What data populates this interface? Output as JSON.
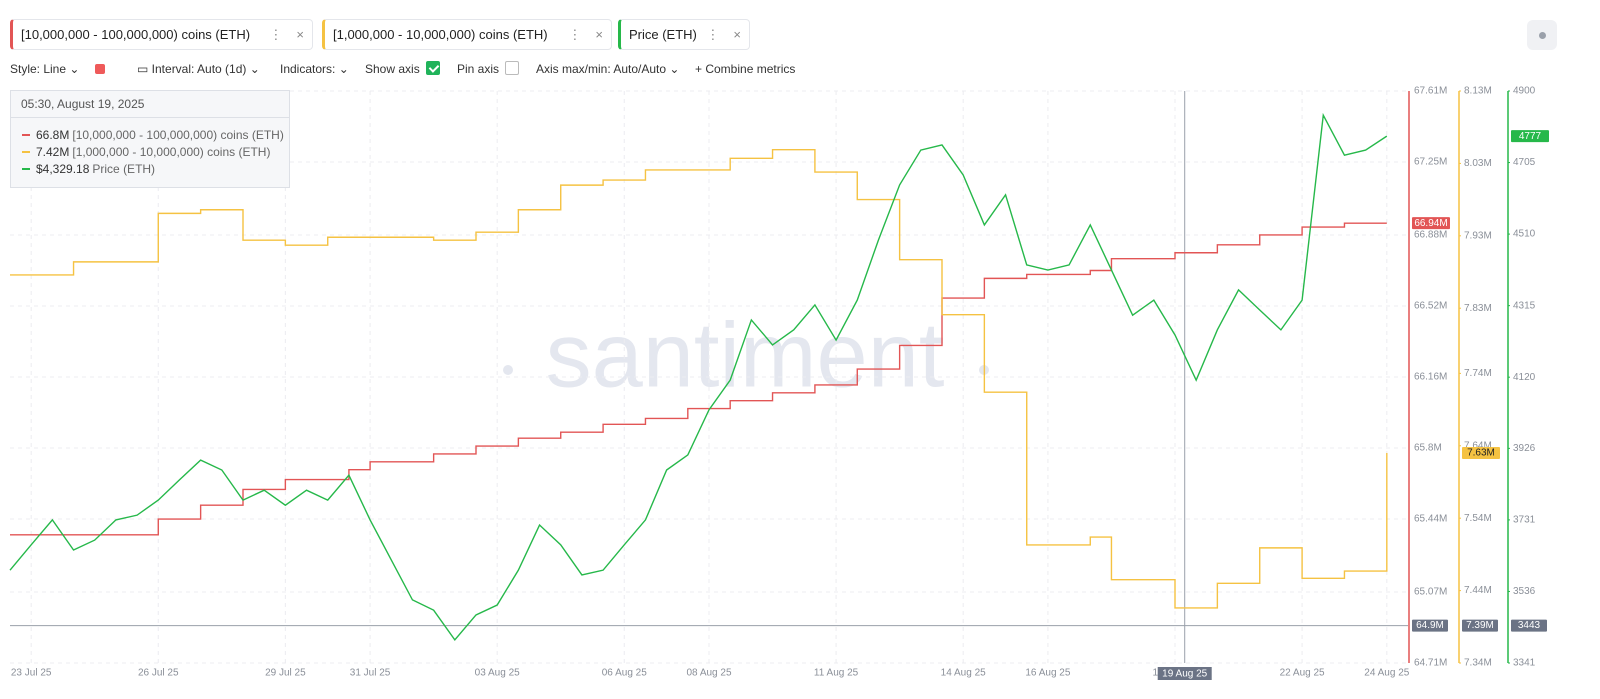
{
  "toolbar": {
    "style": "Style: Line",
    "interval": "Interval: Auto (1d)",
    "indicators": "Indicators:",
    "show_axis": "Show axis",
    "show_axis_checked": true,
    "pin_axis": "Pin axis",
    "pin_axis_checked": false,
    "axis_range": "Axis max/min: Auto/Auto",
    "combine": "+ Combine metrics"
  },
  "tooltip": {
    "time": "05:30, August 19, 2025",
    "values": [
      "66.8M",
      "7.42M",
      "$4,329.18"
    ]
  },
  "watermark": "santiment",
  "chart_data": {
    "type": "line",
    "grid": true,
    "x": [
      "2025-07-22T12:00",
      "2025-07-23T00:00",
      "2025-07-23T12:00",
      "2025-07-24T00:00",
      "2025-07-24T12:00",
      "2025-07-25T00:00",
      "2025-07-25T12:00",
      "2025-07-26T00:00",
      "2025-07-26T12:00",
      "2025-07-27T00:00",
      "2025-07-27T12:00",
      "2025-07-28T00:00",
      "2025-07-28T12:00",
      "2025-07-29T00:00",
      "2025-07-29T12:00",
      "2025-07-30T00:00",
      "2025-07-30T12:00",
      "2025-07-31T00:00",
      "2025-07-31T12:00",
      "2025-08-01T00:00",
      "2025-08-01T12:00",
      "2025-08-02T00:00",
      "2025-08-02T12:00",
      "2025-08-03T00:00",
      "2025-08-03T12:00",
      "2025-08-04T00:00",
      "2025-08-04T12:00",
      "2025-08-05T00:00",
      "2025-08-05T12:00",
      "2025-08-06T00:00",
      "2025-08-06T12:00",
      "2025-08-07T00:00",
      "2025-08-07T12:00",
      "2025-08-08T00:00",
      "2025-08-08T12:00",
      "2025-08-09T00:00",
      "2025-08-09T12:00",
      "2025-08-10T00:00",
      "2025-08-10T12:00",
      "2025-08-11T00:00",
      "2025-08-11T12:00",
      "2025-08-12T00:00",
      "2025-08-12T12:00",
      "2025-08-13T00:00",
      "2025-08-13T12:00",
      "2025-08-14T00:00",
      "2025-08-14T12:00",
      "2025-08-15T00:00",
      "2025-08-15T12:00",
      "2025-08-16T00:00",
      "2025-08-16T12:00",
      "2025-08-17T00:00",
      "2025-08-17T12:00",
      "2025-08-18T00:00",
      "2025-08-18T12:00",
      "2025-08-19T00:00",
      "2025-08-19T12:00",
      "2025-08-20T00:00",
      "2025-08-20T12:00",
      "2025-08-21T00:00",
      "2025-08-21T12:00",
      "2025-08-22T00:00",
      "2025-08-22T12:00",
      "2025-08-23T00:00",
      "2025-08-23T12:00",
      "2025-08-24T00:00"
    ],
    "xlim": [
      "2025-07-22T12:00",
      "2025-08-24T12:00"
    ],
    "xticks": [
      {
        "value": "2025-07-23T00:00",
        "label": "23 Jul 25"
      },
      {
        "value": "2025-07-26T00:00",
        "label": "26 Jul 25"
      },
      {
        "value": "2025-07-29T00:00",
        "label": "29 Jul 25"
      },
      {
        "value": "2025-07-31T00:00",
        "label": "31 Jul 25"
      },
      {
        "value": "2025-08-03T00:00",
        "label": "03 Aug 25"
      },
      {
        "value": "2025-08-06T00:00",
        "label": "06 Aug 25"
      },
      {
        "value": "2025-08-08T00:00",
        "label": "08 Aug 25"
      },
      {
        "value": "2025-08-11T00:00",
        "label": "11 Aug 25"
      },
      {
        "value": "2025-08-14T00:00",
        "label": "14 Aug 25"
      },
      {
        "value": "2025-08-16T00:00",
        "label": "16 Aug 25"
      },
      {
        "value": "2025-08-19T00:00",
        "label": "19 Aug 25"
      },
      {
        "value": "2025-08-22T00:00",
        "label": "22 Aug 25"
      },
      {
        "value": "2025-08-24T00:00",
        "label": "24 Aug 25"
      }
    ],
    "ylim": [
      64710000,
      67610000
    ],
    "yticks": [
      {
        "value": 64710000,
        "label": "64.71M"
      },
      {
        "value": 65070000,
        "label": "65.07M"
      },
      {
        "value": 65440000,
        "label": "65.44M"
      },
      {
        "value": 65800000,
        "label": "65.8M"
      },
      {
        "value": 66160000,
        "label": "66.16M"
      },
      {
        "value": 66520000,
        "label": "66.52M"
      },
      {
        "value": 66880000,
        "label": "66.88M"
      },
      {
        "value": 67250000,
        "label": "67.25M"
      },
      {
        "value": 67610000,
        "label": "67.61M"
      }
    ],
    "y2lim": [
      7340000,
      8130000
    ],
    "y2ticks": [
      {
        "value": 7340000,
        "label": "7.34M"
      },
      {
        "value": 7440000,
        "label": "7.44M"
      },
      {
        "value": 7540000,
        "label": "7.54M"
      },
      {
        "value": 7640000,
        "label": "7.64M"
      },
      {
        "value": 7740000,
        "label": "7.74M"
      },
      {
        "value": 7830000,
        "label": "7.83M"
      },
      {
        "value": 7930000,
        "label": "7.93M"
      },
      {
        "value": 8030000,
        "label": "8.03M"
      },
      {
        "value": 8130000,
        "label": "8.13M"
      }
    ],
    "y3lim": [
      3341,
      4900
    ],
    "y3ticks": [
      3341,
      3536,
      3731,
      3926,
      4120,
      4315,
      4510,
      4705,
      4900
    ],
    "series": [
      {
        "name": "[10,000,000 - 100,000,000) coins (ETH)",
        "color": "#e25555",
        "axis": "y",
        "step": true,
        "last_label": "66.94M",
        "values": [
          65360000,
          65360000,
          65360000,
          65360000,
          65360000,
          65360000,
          65360000,
          65440000,
          65440000,
          65510000,
          65510000,
          65590000,
          65590000,
          65640000,
          65640000,
          65640000,
          65690000,
          65730000,
          65730000,
          65730000,
          65770000,
          65770000,
          65810000,
          65810000,
          65850000,
          65850000,
          65880000,
          65880000,
          65920000,
          65920000,
          65950000,
          65950000,
          66000000,
          66000000,
          66040000,
          66040000,
          66080000,
          66080000,
          66120000,
          66120000,
          66200000,
          66200000,
          66320000,
          66320000,
          66560000,
          66560000,
          66660000,
          66660000,
          66680000,
          66680000,
          66680000,
          66700000,
          66760000,
          66760000,
          66760000,
          66790000,
          66790000,
          66830000,
          66830000,
          66880000,
          66880000,
          66920000,
          66920000,
          66940000,
          66940000,
          66940000
        ]
      },
      {
        "name": "[1,000,000 - 10,000,000) coins (ETH)",
        "color": "#f5c242",
        "axis": "y2",
        "step": true,
        "last_label": "7.63M",
        "values": [
          7876000,
          7876000,
          7876000,
          7894000,
          7894000,
          7894000,
          7894000,
          7961000,
          7961000,
          7966000,
          7966000,
          7924000,
          7924000,
          7917000,
          7917000,
          7928000,
          7928000,
          7928000,
          7928000,
          7928000,
          7924000,
          7924000,
          7935000,
          7935000,
          7966000,
          7966000,
          8000000,
          8000000,
          8007000,
          8007000,
          8021000,
          8021000,
          8021000,
          8021000,
          8037000,
          8037000,
          8049000,
          8049000,
          8018000,
          8018000,
          7980000,
          7980000,
          7897000,
          7897000,
          7821000,
          7821000,
          7714000,
          7714000,
          7503000,
          7503000,
          7503000,
          7514000,
          7455000,
          7455000,
          7455000,
          7416000,
          7416000,
          7450000,
          7450000,
          7499000,
          7499000,
          7457000,
          7457000,
          7467000,
          7467000,
          7630000
        ]
      },
      {
        "name": "Price (ETH)",
        "color": "#26b84a",
        "axis": "y3",
        "step": false,
        "last_label": "4777",
        "values": [
          3594,
          3663,
          3731,
          3649,
          3676,
          3731,
          3744,
          3785,
          3840,
          3894,
          3867,
          3785,
          3812,
          3771,
          3812,
          3785,
          3853,
          3731,
          3622,
          3513,
          3485,
          3404,
          3472,
          3499,
          3594,
          3717,
          3663,
          3581,
          3594,
          3663,
          3731,
          3867,
          3908,
          4031,
          4112,
          4276,
          4208,
          4249,
          4317,
          4221,
          4330,
          4494,
          4644,
          4739,
          4753,
          4671,
          4535,
          4617,
          4426,
          4412,
          4426,
          4535,
          4412,
          4289,
          4330,
          4235,
          4112,
          4249,
          4358,
          4303,
          4249,
          4330,
          4834,
          4725,
          4739,
          4777
        ]
      }
    ],
    "crosshair": {
      "x": "2025-08-19T05:30",
      "x_label": "19 Aug 25",
      "y": [
        64900000,
        7390000,
        3443
      ],
      "y_labels": [
        "64.9M",
        "7.39M",
        "3443"
      ]
    }
  }
}
